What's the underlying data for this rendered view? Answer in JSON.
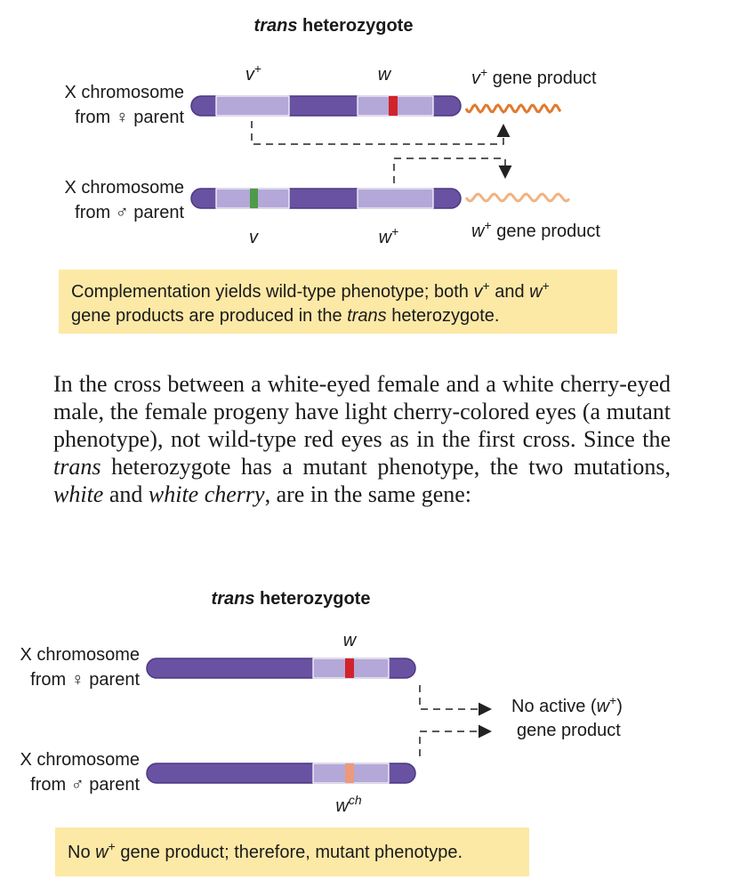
{
  "top_figure": {
    "title": [
      {
        "text": "trans",
        "style": "bold italic"
      },
      {
        "text": " heterozygote",
        "style": "bold"
      }
    ],
    "female_label": [
      "X chromosome",
      "from ♀ parent"
    ],
    "male_label": [
      "X chromosome",
      "from ♂ parent"
    ],
    "female_genes": [
      [
        {
          "text": "v",
          "style": "italic"
        },
        {
          "text": "+",
          "style": "sup"
        }
      ],
      [
        {
          "text": "w",
          "style": "italic"
        }
      ]
    ],
    "male_genes": [
      [
        {
          "text": "v",
          "style": "italic"
        }
      ],
      [
        {
          "text": "w",
          "style": "italic"
        },
        {
          "text": "+",
          "style": "sup"
        }
      ]
    ],
    "products": [
      [
        {
          "text": "v",
          "style": "italic"
        },
        {
          "text": "+",
          "style": "sup"
        },
        {
          "text": " gene product"
        }
      ],
      [
        {
          "text": "w",
          "style": "italic"
        },
        {
          "text": "+",
          "style": "sup"
        },
        {
          "text": " gene product"
        }
      ]
    ],
    "caption": [
      [
        {
          "text": "Complementation yields wild-type phenotype; both "
        },
        {
          "text": "v",
          "style": "italic"
        },
        {
          "text": "+",
          "style": "sup"
        },
        {
          "text": " and "
        },
        {
          "text": "w",
          "style": "italic"
        },
        {
          "text": "+",
          "style": "sup"
        }
      ],
      [
        {
          "text": "gene products are produced in the "
        },
        {
          "text": "trans",
          "style": "italic"
        },
        {
          "text": " heterozygote."
        }
      ]
    ]
  },
  "paragraph": [
    {
      "text": "In the cross between a white-eyed female and a white cherry-eyed male, the female progeny have light cherry-colored eyes (a mutant phenotype), not wild-type red eyes as in the first cross. Since the "
    },
    {
      "text": "trans",
      "style": "italic"
    },
    {
      "text": " heterozygote has a mutant phenotype, the two mutations, "
    },
    {
      "text": "white",
      "style": "italic"
    },
    {
      "text": " and "
    },
    {
      "text": "white cherry",
      "style": "italic"
    },
    {
      "text": ", are in the same gene:"
    }
  ],
  "bottom_figure": {
    "title": [
      {
        "text": "trans",
        "style": "bold italic"
      },
      {
        "text": " heterozygote",
        "style": "bold"
      }
    ],
    "female_label": [
      "X chromosome",
      "from ♀ parent"
    ],
    "male_label": [
      "X chromosome",
      "from ♂ parent"
    ],
    "female_gene": [
      {
        "text": "w",
        "style": "italic"
      }
    ],
    "male_gene": [
      {
        "text": "w",
        "style": "italic"
      },
      {
        "text": "ch",
        "style": "sup italic"
      }
    ],
    "result": [
      [
        {
          "text": "No active ("
        },
        {
          "text": "w",
          "style": "italic"
        },
        {
          "text": "+",
          "style": "sup"
        },
        {
          "text": ")"
        }
      ],
      [
        {
          "text": "gene product"
        }
      ]
    ],
    "caption": [
      [
        {
          "text": "No "
        },
        {
          "text": "w",
          "style": "italic"
        },
        {
          "text": "+",
          "style": "sup"
        },
        {
          "text": " gene product; therefore, mutant phenotype."
        }
      ]
    ]
  }
}
